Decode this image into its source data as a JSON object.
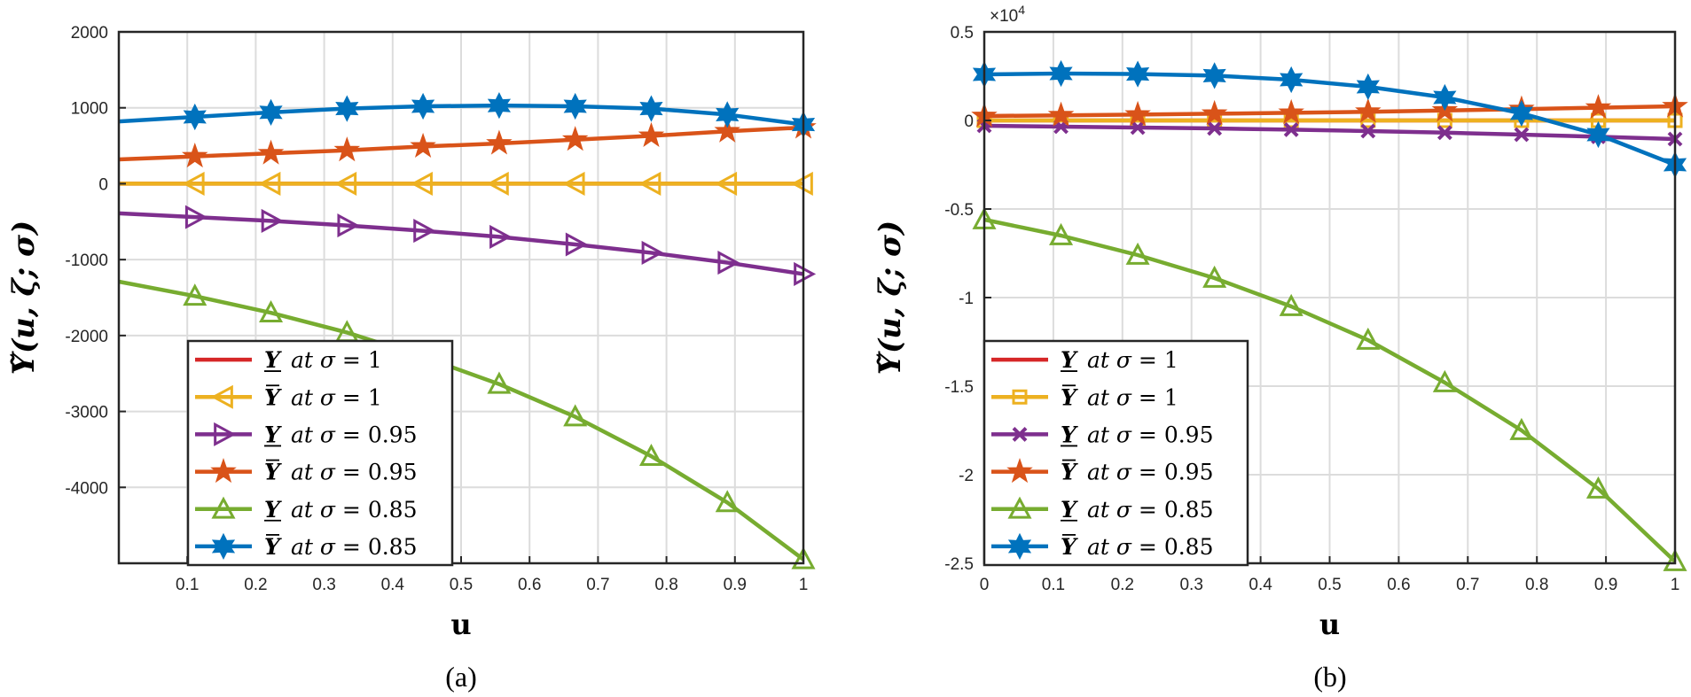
{
  "chart_data": [
    {
      "type": "line",
      "panel": "a",
      "caption": "(a)",
      "xlabel": "u",
      "ylabel": "Υ̃(u, ζ; σ)",
      "xlim": [
        0,
        1
      ],
      "ylim": [
        -5000,
        2000
      ],
      "xticks": [
        0.1,
        0.2,
        0.3,
        0.4,
        0.5,
        0.6,
        0.7,
        0.8,
        0.9,
        1
      ],
      "xtick_labels": [
        "0.1",
        "0.2",
        "0.3",
        "0.4",
        "0.5",
        "0.6",
        "0.7",
        "0.8",
        "0.9",
        "1"
      ],
      "yticks": [
        2000,
        1000,
        0,
        -1000,
        -2000,
        -3000,
        -4000
      ],
      "ytick_labels": [
        "2000",
        "1000",
        "0",
        "-1000",
        "-2000",
        "-3000",
        "-4000"
      ],
      "exponent_label": "",
      "grid": true,
      "legend_position": "bottom-left",
      "x": [
        0,
        0.1111,
        0.2222,
        0.3333,
        0.4444,
        0.5556,
        0.6667,
        0.7778,
        0.8889,
        1
      ],
      "series": [
        {
          "label": "Υ at σ = 1",
          "symbol": "Υ",
          "bar": "under",
          "sigma": "1",
          "color": "#d62728",
          "marker": "none",
          "values": [
            0,
            0,
            0,
            0,
            0,
            0,
            0,
            0,
            0,
            0
          ]
        },
        {
          "label": "Ῡ at σ = 1",
          "symbol": "Υ",
          "bar": "over",
          "sigma": "1",
          "color": "#edb120",
          "marker": "triangle-left",
          "values": [
            0,
            0,
            0,
            0,
            0,
            0,
            0,
            0,
            0,
            0
          ]
        },
        {
          "label": "Υ at σ = 0.95",
          "symbol": "Υ",
          "bar": "under",
          "sigma": "0.95",
          "color": "#7e2f8e",
          "marker": "triangle-right",
          "values": [
            -390,
            -440,
            -490,
            -550,
            -620,
            -700,
            -800,
            -910,
            -1040,
            -1190
          ]
        },
        {
          "label": "Ῡ at σ = 0.95",
          "symbol": "Υ",
          "bar": "over",
          "sigma": "0.95",
          "color": "#d95319",
          "marker": "star",
          "values": [
            320,
            360,
            400,
            440,
            490,
            530,
            580,
            630,
            690,
            740
          ]
        },
        {
          "label": "Υ at σ = 0.85",
          "symbol": "Υ",
          "bar": "under",
          "sigma": "0.85",
          "color": "#77ac30",
          "marker": "triangle-up",
          "values": [
            -1290,
            -1480,
            -1700,
            -1960,
            -2280,
            -2640,
            -3070,
            -3590,
            -4200,
            -4950
          ]
        },
        {
          "label": "Ῡ at σ = 0.85",
          "symbol": "Υ",
          "bar": "over",
          "sigma": "0.85",
          "color": "#0072bd",
          "marker": "hexagram",
          "values": [
            820,
            880,
            940,
            990,
            1020,
            1030,
            1020,
            990,
            910,
            780
          ]
        }
      ]
    },
    {
      "type": "line",
      "panel": "b",
      "caption": "(b)",
      "xlabel": "u",
      "ylabel": "Υ̃(u, ζ; σ)",
      "xlim": [
        0,
        1
      ],
      "ylim": [
        -25000,
        5000
      ],
      "xticks": [
        0,
        0.1,
        0.2,
        0.3,
        0.4,
        0.5,
        0.6,
        0.7,
        0.8,
        0.9,
        1
      ],
      "xtick_labels": [
        "0",
        "0.1",
        "0.2",
        "0.3",
        "0.4",
        "0.5",
        "0.6",
        "0.7",
        "0.8",
        "0.9",
        "1"
      ],
      "yticks": [
        5000,
        0,
        -5000,
        -10000,
        -15000,
        -20000,
        -25000
      ],
      "ytick_labels": [
        "0.5",
        "0",
        "-0.5",
        "-1",
        "-1.5",
        "-2",
        "-2.5"
      ],
      "exponent_label": "×10^4",
      "exponent_base": "×10",
      "exponent_power": "4",
      "grid": true,
      "legend_position": "bottom-left",
      "x": [
        0,
        0.1111,
        0.2222,
        0.3333,
        0.4444,
        0.5556,
        0.6667,
        0.7778,
        0.8889,
        1
      ],
      "series": [
        {
          "label": "Υ at σ = 1",
          "symbol": "Υ",
          "bar": "under",
          "sigma": "1",
          "color": "#d62728",
          "marker": "none",
          "values": [
            0,
            0,
            0,
            0,
            0,
            0,
            0,
            0,
            0,
            0
          ]
        },
        {
          "label": "Ῡ at σ = 1",
          "symbol": "Υ",
          "bar": "over",
          "sigma": "1",
          "color": "#edb120",
          "marker": "square",
          "values": [
            0,
            0,
            0,
            0,
            0,
            0,
            0,
            0,
            0,
            0
          ]
        },
        {
          "label": "Υ at σ = 0.95",
          "symbol": "Υ",
          "bar": "under",
          "sigma": "0.95",
          "color": "#7e2f8e",
          "marker": "x",
          "values": [
            -300,
            -350,
            -400,
            -450,
            -520,
            -600,
            -690,
            -800,
            -920,
            -1050
          ]
        },
        {
          "label": "Ῡ at σ = 0.95",
          "symbol": "Υ",
          "bar": "over",
          "sigma": "0.95",
          "color": "#d95319",
          "marker": "star",
          "values": [
            250,
            290,
            330,
            380,
            430,
            490,
            560,
            640,
            720,
            800
          ]
        },
        {
          "label": "Υ at σ = 0.85",
          "symbol": "Υ",
          "bar": "under",
          "sigma": "0.85",
          "color": "#77ac30",
          "marker": "triangle-up",
          "values": [
            -5600,
            -6500,
            -7600,
            -8900,
            -10500,
            -12400,
            -14800,
            -17500,
            -20800,
            -24900
          ]
        },
        {
          "label": "Ῡ at σ = 0.85",
          "symbol": "Υ",
          "bar": "over",
          "sigma": "0.85",
          "color": "#0072bd",
          "marker": "hexagram",
          "values": [
            2600,
            2650,
            2620,
            2530,
            2300,
            1900,
            1300,
            400,
            -800,
            -2500
          ]
        }
      ]
    }
  ]
}
